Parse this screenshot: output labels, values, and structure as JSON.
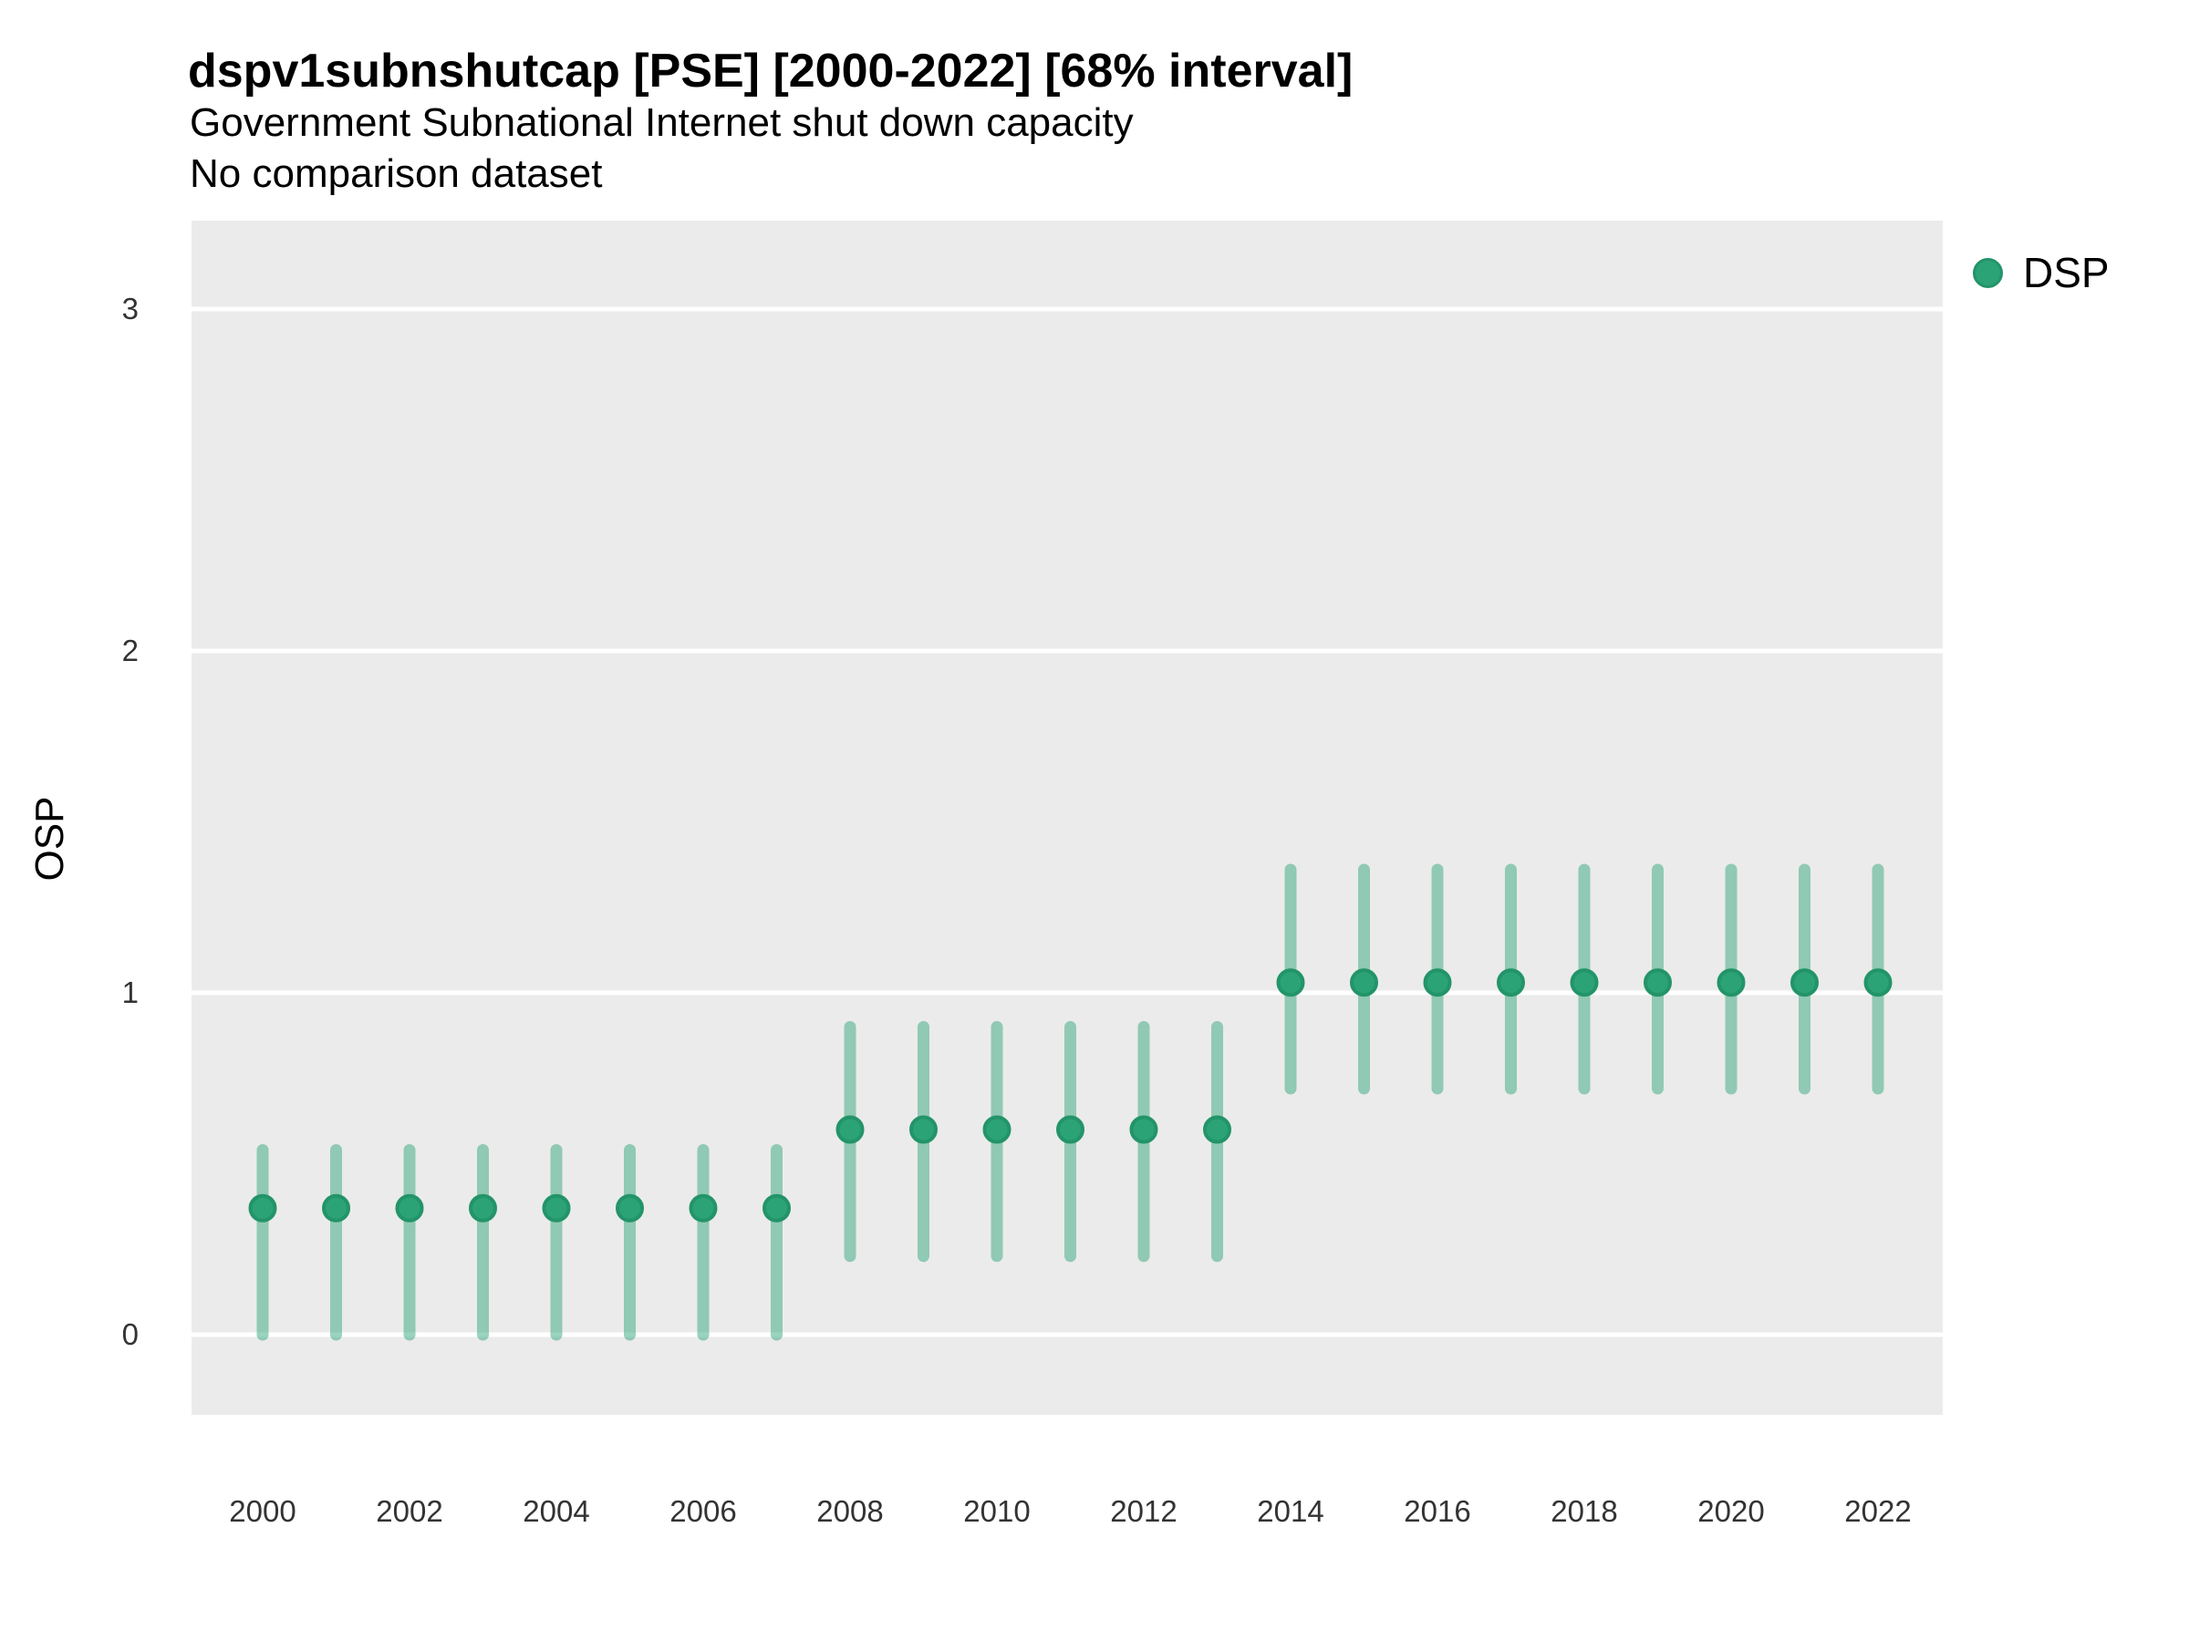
{
  "header": {
    "title": "dspv1subnshutcap [PSE] [2000-2022] [68% interval]",
    "subtitle": "Government Subnational Internet shut down capacity",
    "note": "No comparison dataset"
  },
  "axes": {
    "y_title": "OSP",
    "x_title": ""
  },
  "legend": {
    "entries": [
      {
        "label": "DSP",
        "color": "#2ca377"
      }
    ],
    "position": "right-top"
  },
  "colors": {
    "background": "#ffffff",
    "panel": "#ebebeb",
    "grid": "#ffffff",
    "point_fill": "#2ca377",
    "point_stroke": "#239469",
    "interval": "rgba(44,163,119,0.48)",
    "tick_text": "#333333",
    "title_text": "#000000"
  },
  "chart_data": {
    "type": "pointrange",
    "title": "dspv1subnshutcap [PSE] [2000-2022] [68% interval]",
    "subtitle": "Government Subnational Internet shut down capacity",
    "note": "No comparison dataset",
    "xlabel": "",
    "ylabel": "OSP",
    "interval_level": "68%",
    "grid": "white-major-on-gray",
    "legend_position": "right-top",
    "x_ticks": [
      2000,
      2002,
      2004,
      2006,
      2008,
      2010,
      2012,
      2014,
      2016,
      2018,
      2020,
      2022
    ],
    "y_ticks": [
      0,
      1,
      2,
      3
    ],
    "xlim": [
      1999.0,
      2022.9
    ],
    "ylim": [
      -0.23,
      3.26
    ],
    "series": [
      {
        "name": "DSP",
        "points": [
          {
            "x": 2000,
            "y": 0.37,
            "lo": 0.0,
            "hi": 0.54
          },
          {
            "x": 2001,
            "y": 0.37,
            "lo": 0.0,
            "hi": 0.54
          },
          {
            "x": 2002,
            "y": 0.37,
            "lo": 0.0,
            "hi": 0.54
          },
          {
            "x": 2003,
            "y": 0.37,
            "lo": 0.0,
            "hi": 0.54
          },
          {
            "x": 2004,
            "y": 0.37,
            "lo": 0.0,
            "hi": 0.54
          },
          {
            "x": 2005,
            "y": 0.37,
            "lo": 0.0,
            "hi": 0.54
          },
          {
            "x": 2006,
            "y": 0.37,
            "lo": 0.0,
            "hi": 0.54
          },
          {
            "x": 2007,
            "y": 0.37,
            "lo": 0.0,
            "hi": 0.54
          },
          {
            "x": 2008,
            "y": 0.6,
            "lo": 0.23,
            "hi": 0.9
          },
          {
            "x": 2009,
            "y": 0.6,
            "lo": 0.23,
            "hi": 0.9
          },
          {
            "x": 2010,
            "y": 0.6,
            "lo": 0.23,
            "hi": 0.9
          },
          {
            "x": 2011,
            "y": 0.6,
            "lo": 0.23,
            "hi": 0.9
          },
          {
            "x": 2012,
            "y": 0.6,
            "lo": 0.23,
            "hi": 0.9
          },
          {
            "x": 2013,
            "y": 0.6,
            "lo": 0.23,
            "hi": 0.9
          },
          {
            "x": 2014,
            "y": 1.03,
            "lo": 0.72,
            "hi": 1.36
          },
          {
            "x": 2015,
            "y": 1.03,
            "lo": 0.72,
            "hi": 1.36
          },
          {
            "x": 2016,
            "y": 1.03,
            "lo": 0.72,
            "hi": 1.36
          },
          {
            "x": 2017,
            "y": 1.03,
            "lo": 0.72,
            "hi": 1.36
          },
          {
            "x": 2018,
            "y": 1.03,
            "lo": 0.72,
            "hi": 1.36
          },
          {
            "x": 2019,
            "y": 1.03,
            "lo": 0.72,
            "hi": 1.36
          },
          {
            "x": 2020,
            "y": 1.03,
            "lo": 0.72,
            "hi": 1.36
          },
          {
            "x": 2021,
            "y": 1.03,
            "lo": 0.72,
            "hi": 1.36
          },
          {
            "x": 2022,
            "y": 1.03,
            "lo": 0.72,
            "hi": 1.36
          }
        ]
      }
    ]
  }
}
